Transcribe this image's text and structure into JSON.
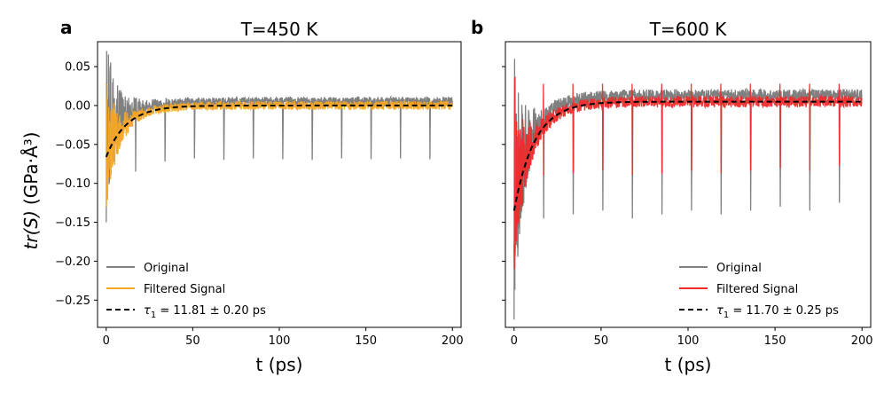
{
  "chart_data": [
    {
      "panel": "a",
      "type": "line",
      "title": "T=450 K",
      "xlabel": "t (ps)",
      "ylabel_var": "tr(S)",
      "ylabel_units": "(GPa·Å³)",
      "xlim": [
        -5,
        205
      ],
      "ylim": [
        -0.285,
        0.082
      ],
      "xticks": [
        0,
        50,
        100,
        150,
        200
      ],
      "xtick_labels": [
        "0",
        "50",
        "100",
        "150",
        "200"
      ],
      "yticks": [
        -0.25,
        -0.2,
        -0.15,
        -0.1,
        -0.05,
        0.0,
        0.05
      ],
      "ytick_labels": [
        "−0.25",
        "−0.20",
        "−0.15",
        "−0.10",
        "−0.05",
        "0.00",
        "0.05"
      ],
      "legend_position": "bottom-left",
      "series": [
        {
          "name": "Original",
          "color": "#808080"
        },
        {
          "name": "Filtered Signal",
          "color": "#f5a623"
        },
        {
          "name": "τ₁ = 11.81 ± 0.20 ps",
          "color": "#000000",
          "style": "dashed"
        }
      ],
      "tau_label": {
        "symbol": "τ",
        "sub": "1",
        "text": " = 11.81 ± 0.20 ps"
      },
      "fit": {
        "A": -0.066,
        "tau": 11.81,
        "offset": 0.0
      },
      "spikes": {
        "times": [
          17,
          34,
          51,
          68,
          85,
          102,
          119,
          136,
          153,
          170,
          187
        ],
        "depths": [
          -0.085,
          -0.072,
          -0.068,
          -0.07,
          -0.068,
          -0.069,
          -0.07,
          -0.068,
          -0.069,
          -0.068,
          -0.069
        ]
      },
      "envelope": {
        "orig_min_start": -0.15,
        "orig_max_start": 0.07,
        "filt_min_start": -0.13,
        "filt_max_start": 0.03,
        "noise_end": 0.006
      }
    },
    {
      "panel": "b",
      "type": "line",
      "title": "T=600 K",
      "xlabel": "t (ps)",
      "xlim": [
        -5,
        205
      ],
      "ylim": [
        -0.285,
        0.082
      ],
      "xticks": [
        0,
        50,
        100,
        150,
        200
      ],
      "xtick_labels": [
        "0",
        "50",
        "100",
        "150",
        "200"
      ],
      "legend_position": "bottom-right",
      "series": [
        {
          "name": "Original",
          "color": "#808080"
        },
        {
          "name": "Filtered Signal",
          "color": "#ee2a2a"
        },
        {
          "name": "τ₁ = 11.70 ± 0.25 ps",
          "color": "#000000",
          "style": "dashed"
        }
      ],
      "tau_label": {
        "symbol": "τ",
        "sub": "1",
        "text": " = 11.70 ± 0.25 ps"
      },
      "fit": {
        "A": -0.14,
        "tau": 11.7,
        "offset": 0.005
      },
      "spikes": {
        "times": [
          17,
          34,
          51,
          68,
          85,
          102,
          119,
          136,
          153,
          170,
          187
        ],
        "depths": [
          -0.145,
          -0.14,
          -0.135,
          -0.145,
          -0.14,
          -0.135,
          -0.14,
          -0.135,
          -0.13,
          -0.135,
          -0.125
        ]
      },
      "envelope": {
        "orig_min_start": -0.275,
        "orig_max_start": 0.06,
        "filt_min_start": -0.21,
        "filt_max_start": 0.04,
        "noise_end": 0.008
      }
    }
  ]
}
